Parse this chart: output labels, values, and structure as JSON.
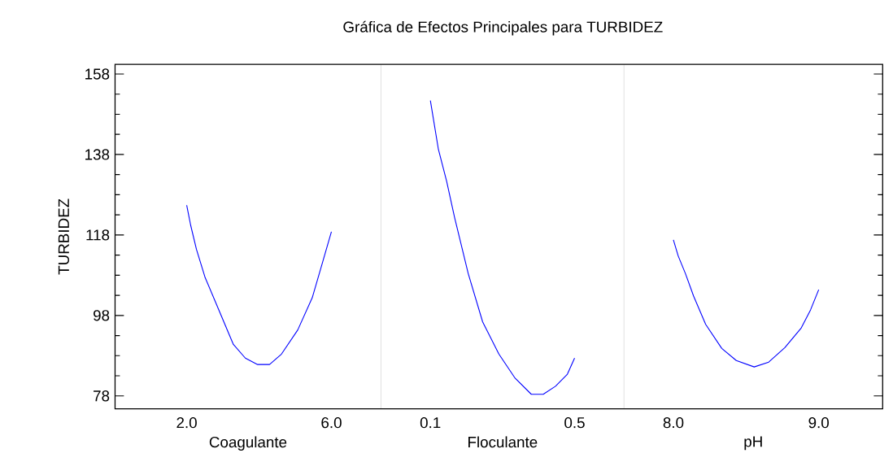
{
  "chart_data": [
    {
      "type": "line",
      "xlabel": "Coagulante",
      "ylabel": "TURBIDEZ",
      "color": "#0000ff",
      "x": [
        2.0,
        2.11,
        2.27,
        2.51,
        2.84,
        3.29,
        3.62,
        3.96,
        4.29,
        4.62,
        5.07,
        5.47,
        5.73,
        6.0
      ],
      "values": [
        125.4,
        120.4,
        114.4,
        107.4,
        100.4,
        90.8,
        87.4,
        85.8,
        85.8,
        88.4,
        94.4,
        102.4,
        110.4,
        118.8
      ],
      "xlim": [
        0.02,
        7.37
      ],
      "xticks": [
        {
          "value": 2.0,
          "label": "2.0"
        },
        {
          "value": 6.0,
          "label": "6.0"
        }
      ],
      "ylim": [
        74.8,
        160.4
      ],
      "yticks": [
        78,
        {
          "value": 83,
          "label": null
        },
        {
          "value": 88,
          "label": null
        },
        {
          "value": 93,
          "label": null
        },
        98,
        {
          "value": 103,
          "label": null
        },
        {
          "value": 108,
          "label": null
        },
        {
          "value": 113,
          "label": null
        },
        118,
        {
          "value": 123,
          "label": null
        },
        {
          "value": 128,
          "label": null
        },
        {
          "value": 133,
          "label": null
        },
        138,
        {
          "value": 143,
          "label": null
        },
        {
          "value": 148,
          "label": null
        },
        {
          "value": 153,
          "label": null
        },
        158
      ]
    },
    {
      "type": "line",
      "title": "Gráfica de Efectos Principales para TURBIDEZ",
      "xlabel": "Floculante",
      "color": "#0000ff",
      "x": [
        0.1,
        0.122,
        0.145,
        0.167,
        0.205,
        0.245,
        0.29,
        0.335,
        0.38,
        0.413,
        0.447,
        0.48,
        0.5
      ],
      "values": [
        151.4,
        139.4,
        131.4,
        122.4,
        108.4,
        96.4,
        88.4,
        82.4,
        78.4,
        78.4,
        80.4,
        83.4,
        87.4
      ],
      "xlim": [
        -0.037,
        0.637
      ],
      "xticks": [
        {
          "value": 0.1,
          "label": "0.1"
        },
        {
          "value": 0.5,
          "label": "0.5"
        }
      ],
      "ylim": [
        74.8,
        160.4
      ],
      "tick_labels": "x"
    },
    {
      "type": "line",
      "xlabel": "pH",
      "color": "#0000ff",
      "x": [
        8.0,
        8.033,
        8.083,
        8.139,
        8.222,
        8.333,
        8.433,
        8.556,
        8.656,
        8.767,
        8.878,
        8.944,
        9.0
      ],
      "values": [
        116.8,
        112.8,
        108.4,
        102.8,
        95.8,
        89.8,
        86.8,
        85.2,
        86.4,
        90.0,
        94.8,
        99.4,
        104.4
      ],
      "xlim": [
        7.66,
        9.44
      ],
      "xticks": [
        {
          "value": 8.0,
          "label": "8.0"
        },
        {
          "value": 9.0,
          "label": "9.0"
        }
      ],
      "ylim": [
        74.8,
        160.4
      ],
      "yticks": [
        78,
        {
          "value": 83,
          "label": null
        },
        {
          "value": 88,
          "label": null
        },
        {
          "value": 93,
          "label": null
        },
        98,
        {
          "value": 103,
          "label": null
        },
        {
          "value": 108,
          "label": null
        },
        {
          "value": 113,
          "label": null
        },
        118,
        {
          "value": 123,
          "label": null
        },
        {
          "value": 128,
          "label": null
        },
        {
          "value": 133,
          "label": null
        },
        138,
        {
          "value": 143,
          "label": null
        },
        {
          "value": 148,
          "label": null
        },
        {
          "value": 153,
          "label": null
        },
        158
      ],
      "tick_labels": "x"
    }
  ]
}
